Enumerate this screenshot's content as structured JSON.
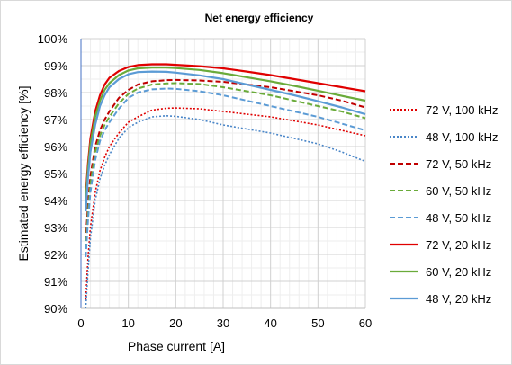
{
  "chart_data": {
    "type": "line",
    "title": "Net energy efficiency",
    "xlabel": "Phase current [A]",
    "ylabel": "Estimated energy efficiency [%]",
    "xlim": [
      0,
      60
    ],
    "ylim": [
      90,
      100
    ],
    "xticks": [
      0,
      10,
      20,
      30,
      40,
      50,
      60
    ],
    "xtick_labels": [
      "0",
      "10",
      "20",
      "30",
      "40",
      "50",
      "60"
    ],
    "yticks": [
      90,
      91,
      92,
      93,
      94,
      95,
      96,
      97,
      98,
      99,
      100
    ],
    "ytick_labels": [
      "90%",
      "91%",
      "92%",
      "93%",
      "94%",
      "95%",
      "96%",
      "97%",
      "98%",
      "99%",
      "100%"
    ],
    "grid": true,
    "legend_position": "right",
    "series": [
      {
        "name": "72 V, 100 kHz",
        "color": "#e00000",
        "dash": "dotted",
        "x": [
          1,
          1.5,
          2,
          3,
          4,
          5,
          6,
          8,
          10,
          12,
          15,
          18,
          20,
          25,
          30,
          35,
          40,
          45,
          50,
          55,
          60
        ],
        "y": [
          90.3,
          91.9,
          93.0,
          94.3,
          95.1,
          95.6,
          96.0,
          96.5,
          96.9,
          97.1,
          97.35,
          97.42,
          97.43,
          97.4,
          97.3,
          97.2,
          97.1,
          96.95,
          96.8,
          96.6,
          96.4
        ]
      },
      {
        "name": "48 V, 100 kHz",
        "color": "#4a86c8",
        "dash": "dotted",
        "x": [
          1,
          1.5,
          2,
          3,
          4,
          5,
          6,
          8,
          10,
          12,
          15,
          18,
          20,
          25,
          30,
          35,
          40,
          45,
          50,
          55,
          60
        ],
        "y": [
          89.9,
          91.4,
          92.6,
          94.0,
          94.8,
          95.3,
          95.7,
          96.3,
          96.7,
          96.9,
          97.1,
          97.14,
          97.12,
          97.0,
          96.8,
          96.65,
          96.5,
          96.3,
          96.1,
          95.8,
          95.45
        ]
      },
      {
        "name": "72 V, 50 kHz",
        "color": "#c00000",
        "dash": "dashed",
        "x": [
          1,
          1.5,
          2,
          3,
          4,
          5,
          6,
          8,
          10,
          12,
          15,
          18,
          20,
          25,
          30,
          35,
          40,
          45,
          50,
          55,
          60
        ],
        "y": [
          92.5,
          93.9,
          94.9,
          96.0,
          96.6,
          97.0,
          97.3,
          97.8,
          98.1,
          98.3,
          98.42,
          98.46,
          98.47,
          98.45,
          98.4,
          98.3,
          98.2,
          98.05,
          97.9,
          97.7,
          97.45
        ]
      },
      {
        "name": "60 V, 50 kHz",
        "color": "#6aab3a",
        "dash": "dashed",
        "x": [
          1,
          1.5,
          2,
          3,
          4,
          5,
          6,
          8,
          10,
          12,
          15,
          18,
          20,
          25,
          30,
          35,
          40,
          45,
          50,
          55,
          60
        ],
        "y": [
          92.2,
          93.6,
          94.6,
          95.8,
          96.4,
          96.8,
          97.1,
          97.6,
          97.95,
          98.15,
          98.3,
          98.34,
          98.35,
          98.32,
          98.2,
          98.05,
          97.9,
          97.7,
          97.5,
          97.3,
          97.05
        ]
      },
      {
        "name": "48 V, 50 kHz",
        "color": "#5b9bd5",
        "dash": "dashed",
        "x": [
          1,
          1.5,
          2,
          3,
          4,
          5,
          6,
          8,
          10,
          12,
          15,
          18,
          20,
          25,
          30,
          35,
          40,
          45,
          50,
          55,
          60
        ],
        "y": [
          91.9,
          93.3,
          94.3,
          95.5,
          96.2,
          96.6,
          96.9,
          97.4,
          97.8,
          98.0,
          98.12,
          98.15,
          98.14,
          98.05,
          97.9,
          97.7,
          97.5,
          97.3,
          97.1,
          96.85,
          96.6
        ]
      },
      {
        "name": "72 V, 20 kHz",
        "color": "#e00000",
        "dash": "solid",
        "x": [
          1,
          1.5,
          2,
          3,
          4,
          5,
          6,
          8,
          10,
          12,
          15,
          18,
          20,
          25,
          30,
          35,
          40,
          45,
          50,
          55,
          60
        ],
        "y": [
          94.2,
          95.4,
          96.3,
          97.3,
          97.9,
          98.3,
          98.55,
          98.8,
          98.95,
          99.02,
          99.05,
          99.05,
          99.03,
          98.98,
          98.9,
          98.78,
          98.65,
          98.5,
          98.35,
          98.2,
          98.05
        ]
      },
      {
        "name": "60 V, 20 kHz",
        "color": "#6aab3a",
        "dash": "solid",
        "x": [
          1,
          1.5,
          2,
          3,
          4,
          5,
          6,
          8,
          10,
          12,
          15,
          18,
          20,
          25,
          30,
          35,
          40,
          45,
          50,
          55,
          60
        ],
        "y": [
          94.0,
          95.2,
          96.1,
          97.1,
          97.7,
          98.1,
          98.35,
          98.65,
          98.82,
          98.9,
          98.93,
          98.93,
          98.91,
          98.84,
          98.72,
          98.57,
          98.42,
          98.25,
          98.07,
          97.88,
          97.7
        ]
      },
      {
        "name": "48 V, 20 kHz",
        "color": "#5b9bd5",
        "dash": "solid",
        "x": [
          1,
          1.5,
          2,
          3,
          4,
          5,
          6,
          8,
          10,
          12,
          15,
          18,
          20,
          25,
          30,
          35,
          40,
          45,
          50,
          55,
          60
        ],
        "y": [
          93.6,
          94.9,
          95.8,
          96.8,
          97.5,
          97.9,
          98.2,
          98.5,
          98.68,
          98.76,
          98.78,
          98.77,
          98.74,
          98.64,
          98.5,
          98.3,
          98.1,
          97.9,
          97.68,
          97.45,
          97.2
        ]
      }
    ]
  }
}
